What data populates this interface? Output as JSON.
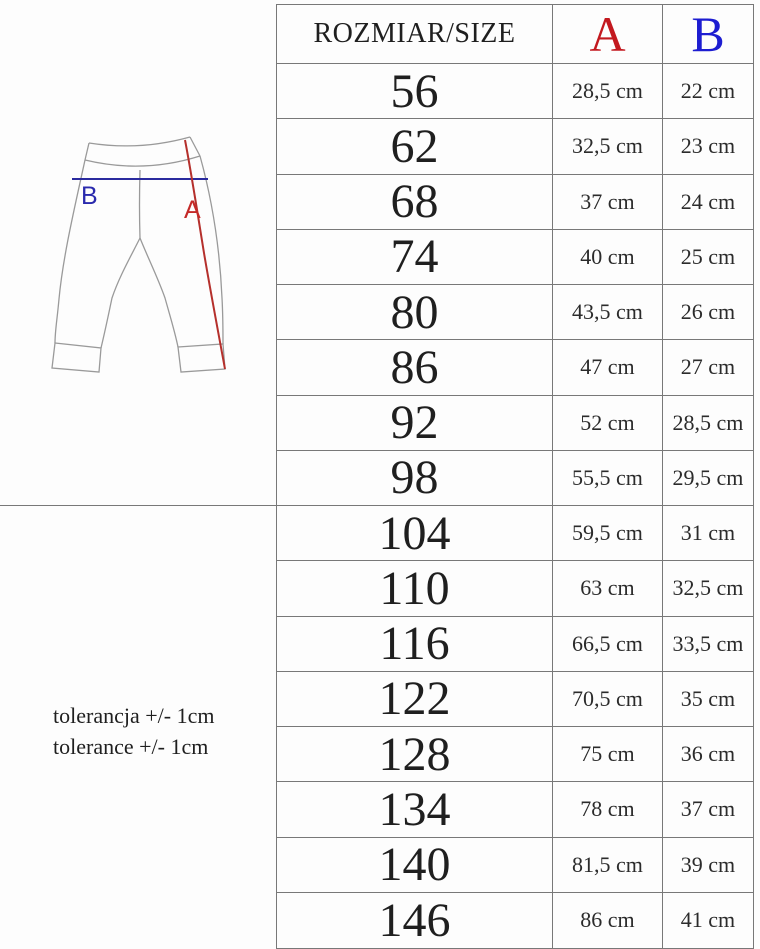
{
  "colors": {
    "page_bg": "#fdfdfd",
    "text": "#1f1f1f",
    "table_border": "#787878",
    "header_a": "#c3191f",
    "header_b": "#1d1dd1",
    "sketch_outline": "#9a9a9a",
    "diagram_line_a": "#b5302c",
    "diagram_line_b": "#2a2a9e",
    "diagram_label_a": "#c42a28",
    "diagram_label_b": "#2a2aad"
  },
  "diagram": {
    "label_a": "A",
    "label_b": "B"
  },
  "tolerance": {
    "line1": "tolerancja +/- 1cm",
    "line2": "tolerance +/- 1cm"
  },
  "table": {
    "header": {
      "size": "ROZMIAR/SIZE",
      "a": "A",
      "b": "B"
    },
    "rows": [
      {
        "size": "56",
        "a": "28,5 cm",
        "b": "22 cm"
      },
      {
        "size": "62",
        "a": "32,5 cm",
        "b": "23 cm"
      },
      {
        "size": "68",
        "a": "37 cm",
        "b": "24 cm"
      },
      {
        "size": "74",
        "a": "40 cm",
        "b": "25 cm"
      },
      {
        "size": "80",
        "a": "43,5 cm",
        "b": "26 cm"
      },
      {
        "size": "86",
        "a": "47 cm",
        "b": "27 cm"
      },
      {
        "size": "92",
        "a": "52 cm",
        "b": "28,5 cm"
      },
      {
        "size": "98",
        "a": "55,5 cm",
        "b": "29,5 cm"
      },
      {
        "size": "104",
        "a": "59,5 cm",
        "b": "31 cm"
      },
      {
        "size": "110",
        "a": "63 cm",
        "b": "32,5 cm"
      },
      {
        "size": "116",
        "a": "66,5 cm",
        "b": "33,5 cm"
      },
      {
        "size": "122",
        "a": "70,5 cm",
        "b": "35 cm"
      },
      {
        "size": "128",
        "a": "75 cm",
        "b": "36 cm"
      },
      {
        "size": "134",
        "a": "78 cm",
        "b": "37 cm"
      },
      {
        "size": "140",
        "a": "81,5 cm",
        "b": "39 cm"
      },
      {
        "size": "146",
        "a": "86 cm",
        "b": "41 cm"
      }
    ]
  }
}
